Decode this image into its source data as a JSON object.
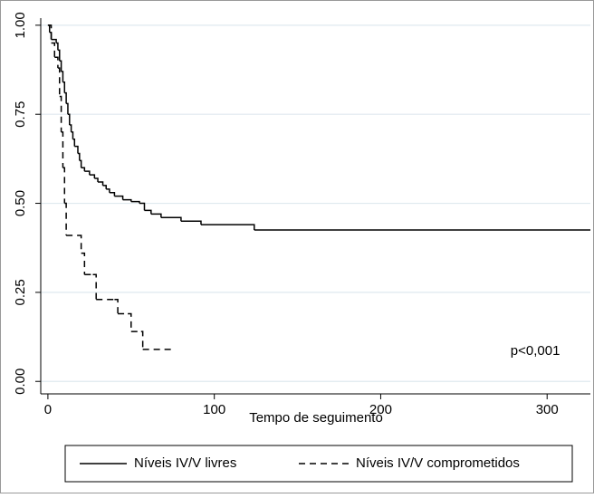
{
  "chart_data": {
    "type": "step",
    "xlabel": "Tempo de seguimento",
    "annotation": {
      "text": "p<0,001",
      "x": 278,
      "y": 0.085
    },
    "xlim": [
      -4.3,
      326
    ],
    "ylim": [
      -0.035,
      1.02
    ],
    "xticks": [
      0,
      100,
      200,
      300
    ],
    "yticks": [
      {
        "value": 0,
        "label": "0.00"
      },
      {
        "value": 0.25,
        "label": "0.25"
      },
      {
        "value": 0.5,
        "label": "0.50"
      },
      {
        "value": 0.75,
        "label": "0.75"
      },
      {
        "value": 1,
        "label": "1.00"
      }
    ],
    "grid": true,
    "series": [
      {
        "name": "Níveis IV/V livres",
        "color": "#000000",
        "dash": "solid",
        "x": [
          0,
          1,
          2,
          5,
          6,
          7,
          8,
          9,
          10,
          11,
          12,
          13,
          14,
          15,
          16,
          18,
          19,
          20,
          22,
          25,
          28,
          30,
          33,
          35,
          37,
          40,
          45,
          50,
          55,
          58,
          62,
          68,
          80,
          92,
          124,
          326
        ],
        "values": [
          1.0,
          0.98,
          0.96,
          0.95,
          0.93,
          0.9,
          0.87,
          0.84,
          0.81,
          0.78,
          0.75,
          0.72,
          0.7,
          0.68,
          0.66,
          0.64,
          0.62,
          0.6,
          0.59,
          0.58,
          0.57,
          0.56,
          0.55,
          0.54,
          0.53,
          0.52,
          0.51,
          0.505,
          0.5,
          0.48,
          0.47,
          0.46,
          0.45,
          0.44,
          0.425,
          0.425
        ]
      },
      {
        "name": "Níveis IV/V comprometidos",
        "color": "#000000",
        "dash": "dashed",
        "x": [
          0,
          2,
          4,
          6,
          7,
          8,
          9,
          10,
          11,
          18,
          20,
          22,
          27,
          29,
          40,
          42,
          48,
          50,
          56,
          57,
          76
        ],
        "values": [
          1.0,
          0.95,
          0.91,
          0.88,
          0.8,
          0.7,
          0.6,
          0.5,
          0.41,
          0.41,
          0.36,
          0.3,
          0.3,
          0.23,
          0.23,
          0.19,
          0.19,
          0.14,
          0.14,
          0.09,
          0.09
        ]
      }
    ]
  }
}
